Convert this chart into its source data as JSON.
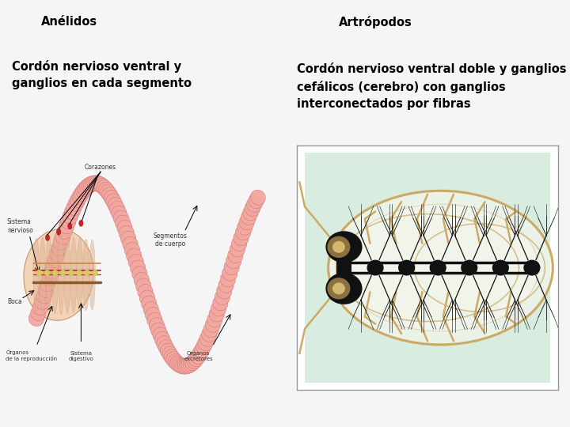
{
  "bg_color": "#f5f5f5",
  "left_title": "Anélidos",
  "right_title": "Artrópodos",
  "left_desc": "Cordón nervioso ventral y\nganglios en cada segmento",
  "right_desc": "Cordón nervioso ventral doble y ganglios\ncefálicos (cerebro) con ganglios\ninterconectados por fibras",
  "title_box_color": "#d4dce8",
  "desc_box_color": "#cfc8b0",
  "right_image_bg": "#d8ede0",
  "right_image_border": "#888888",
  "font_color": "#000000",
  "title_fontsize": 10.5,
  "desc_fontsize": 10.5,
  "fig_width": 7.2,
  "fig_height": 5.4,
  "dpi": 100,
  "worm_body_color": "#f2a8a0",
  "worm_edge_color": "#c87070",
  "worm_inner_color": "#e8c898",
  "nerve_red": "#cc3333",
  "arth_body_color": "#ccaa66",
  "arth_nerve_color": "#111111",
  "arth_ganglia_color": "#111111",
  "eye_outer": "#8b7040",
  "eye_inner": "#d4b870",
  "label_fontsize": 5.5,
  "label_color": "#333333"
}
